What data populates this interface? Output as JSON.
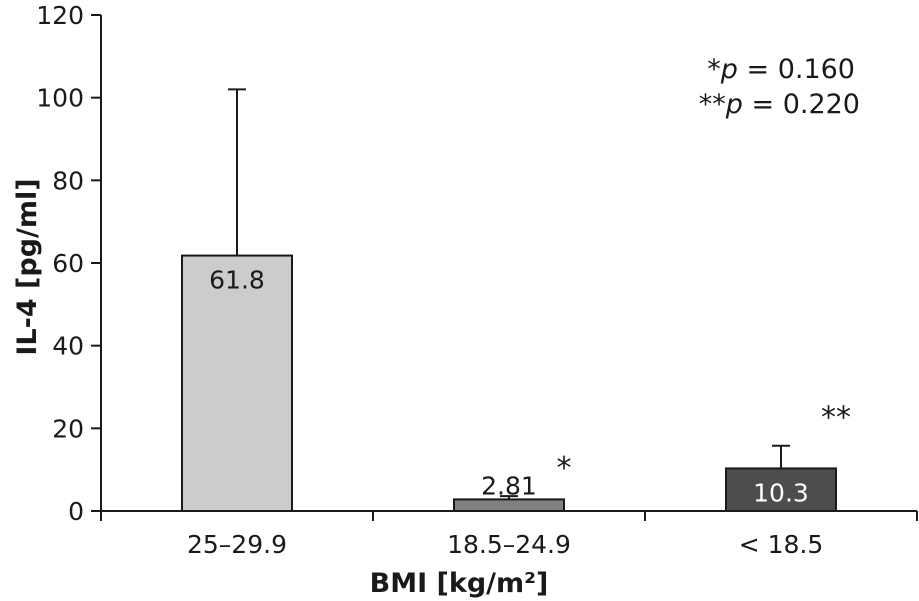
{
  "chart_data": {
    "type": "bar",
    "xlabel": "BMI [kg/m²]",
    "ylabel": "IL-4 [pg/ml]",
    "ylim": [
      0,
      120
    ],
    "yticks": [
      0,
      20,
      40,
      60,
      80,
      100,
      120
    ],
    "categories": [
      "25–29.9",
      "18.5–24.9",
      "< 18.5"
    ],
    "values": [
      61.8,
      2.81,
      10.3
    ],
    "value_labels": [
      "61.8",
      "2.81",
      "10.3"
    ],
    "error_upper": [
      102,
      3.6,
      15.8
    ],
    "significance_marks": [
      "",
      "*",
      "**"
    ],
    "bar_colors": [
      "#cccccc",
      "#808080",
      "#4d4d4d"
    ],
    "value_label_colors": [
      "#1a1a1a",
      "#1a1a1a",
      "#ffffff"
    ],
    "annotations": {
      "p1_prefix": "*",
      "p1_var": "p",
      "p1_rest": " = 0.160",
      "p2_prefix": "**",
      "p2_var": "p",
      "p2_rest": " = 0.220"
    },
    "grid": false,
    "legend": "none"
  }
}
